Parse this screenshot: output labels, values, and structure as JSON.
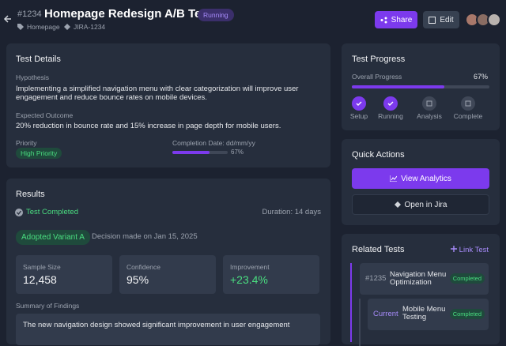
{
  "header": {
    "id": "#1234",
    "title": "Homepage Redesign A/B Test",
    "status": "Running",
    "tags": [
      "Homepage",
      "JIRA-1234"
    ],
    "actions": [
      "Share",
      "Edit"
    ]
  },
  "test_details": {
    "title": "Test Details",
    "hypothesis_label": "Hypothesis",
    "hypothesis": "Implementing a simplified navigation menu with clear categorization will improve user engagement and reduce bounce rates on mobile devices.",
    "outcome_label": "Expected Outcome",
    "outcome": "20% reduction in bounce rate and 15% increase in page depth for mobile users.",
    "priority_label": "Priority",
    "priority": "High Priority",
    "completion_label": "Completion Date: dd/mm/yy",
    "completion_progress": "67%"
  },
  "results": {
    "title": "Results",
    "status": "Test Completed",
    "duration": "Duration: 14 days",
    "variant": "Adopted Variant A",
    "decision": "Decision made on Jan 15, 2025",
    "stats": [
      {
        "label": "Sample Size",
        "value": "12,458"
      },
      {
        "label": "Confidence",
        "value": "95%"
      },
      {
        "label": "Improvement",
        "value": "+23.4%"
      }
    ],
    "summary_label": "Summary of Findings",
    "summary": "The new navigation design showed significant improvement in user engagement"
  },
  "test_progress": {
    "title": "Test Progress",
    "overall_label": "Overall Progress",
    "overall": "67%",
    "steps": [
      {
        "label": "Setup",
        "done": true
      },
      {
        "label": "Running",
        "done": true
      },
      {
        "label": "Analysis",
        "done": false
      },
      {
        "label": "Complete",
        "done": false
      }
    ]
  },
  "quick_actions": {
    "title": "Quick Actions",
    "buttons": [
      "View Analytics",
      "Open in Jira"
    ]
  },
  "related_tests": {
    "title": "Related Tests",
    "link": "Link Test",
    "items": [
      {
        "id": "#1235",
        "name": "Navigation Menu Optimization",
        "status": "Completed"
      },
      {
        "id": "Current",
        "name": "Mobile Menu Testing",
        "status": "Completed"
      }
    ]
  }
}
